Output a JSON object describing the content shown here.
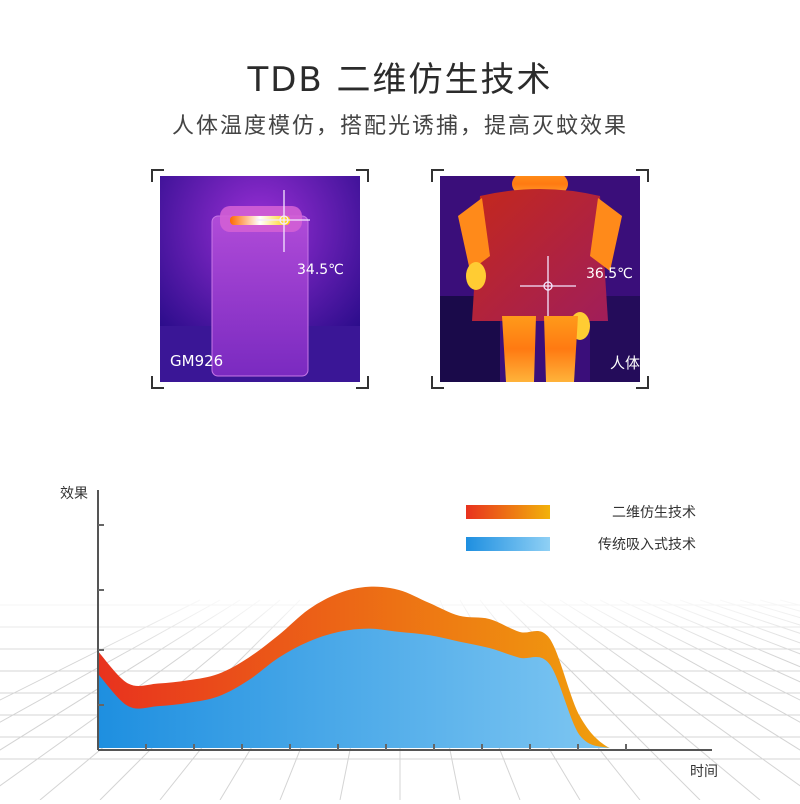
{
  "header": {
    "title": "TDB 二维仿生技术",
    "subtitle": "人体温度模仿，搭配光诱捕，提高灭蚊效果"
  },
  "thermal_images": [
    {
      "temperature": "34.5℃",
      "caption": "GM926"
    },
    {
      "temperature": "36.5℃",
      "caption": "人体"
    }
  ],
  "chart_data": {
    "type": "area",
    "xlabel": "时间",
    "ylabel": "效果",
    "x": [
      0,
      1,
      2,
      3,
      4,
      5,
      6,
      7,
      8,
      9,
      10,
      11,
      12,
      13,
      14,
      15,
      16,
      17,
      18,
      19,
      20
    ],
    "series": [
      {
        "name": "二维仿生技术",
        "color_start": "#e8321e",
        "color_end": "#f2b20a",
        "values": [
          3.0,
          2.0,
          2.0,
          2.1,
          2.3,
          2.8,
          3.5,
          4.3,
          4.8,
          5.0,
          4.9,
          4.5,
          4.1,
          4.0,
          3.6,
          3.4,
          1.0,
          0.0,
          0.0,
          0.0,
          0.0
        ]
      },
      {
        "name": "传统吸入式技术",
        "color_start": "#1e8fe0",
        "color_end": "#8fd0f5",
        "values": [
          2.3,
          1.3,
          1.3,
          1.4,
          1.6,
          2.1,
          2.8,
          3.3,
          3.6,
          3.7,
          3.6,
          3.5,
          3.3,
          3.1,
          2.8,
          2.6,
          0.4,
          0.0,
          0.0,
          0.0,
          0.0
        ]
      }
    ],
    "legend_position": "top-right",
    "grid": false
  }
}
